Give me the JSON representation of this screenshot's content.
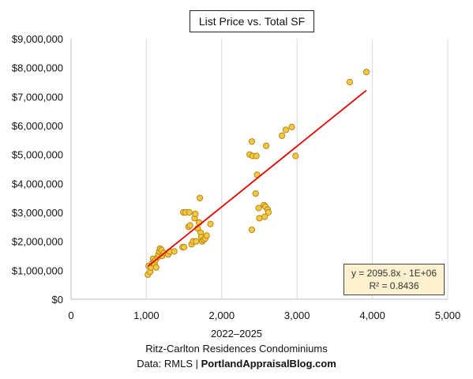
{
  "chart_data": {
    "type": "scatter",
    "title": "List Price vs. Total SF",
    "xlabel": "",
    "ylabel": "",
    "xlim": [
      0,
      5000
    ],
    "ylim": [
      0,
      9000000
    ],
    "x_ticks": [
      0,
      1000,
      2000,
      3000,
      4000,
      5000
    ],
    "x_tick_labels": [
      "0",
      "1,000",
      "2,000",
      "3,000",
      "4,000",
      "5,000"
    ],
    "y_ticks": [
      0,
      1000000,
      2000000,
      3000000,
      4000000,
      5000000,
      6000000,
      7000000,
      8000000,
      9000000
    ],
    "y_tick_labels": [
      "$0",
      "$1,000,000",
      "$2,000,000",
      "$3,000,000",
      "$4,000,000",
      "$5,000,000",
      "$6,000,000",
      "$7,000,000",
      "$8,000,000",
      "$9,000,000"
    ],
    "grid": "vertical",
    "legend": "none",
    "point_color": "#f5c84a",
    "point_edge_color": "#b8860b",
    "trendline_color": "#e30000",
    "points": [
      [
        1020,
        850000
      ],
      [
        1050,
        950000
      ],
      [
        1030,
        1150000
      ],
      [
        1060,
        1100000
      ],
      [
        1080,
        1250000
      ],
      [
        1090,
        1400000
      ],
      [
        1100,
        1300000
      ],
      [
        1110,
        1200000
      ],
      [
        1120,
        1350000
      ],
      [
        1130,
        1100000
      ],
      [
        1150,
        1450000
      ],
      [
        1160,
        1550000
      ],
      [
        1170,
        1650000
      ],
      [
        1180,
        1750000
      ],
      [
        1200,
        1700000
      ],
      [
        1210,
        1500000
      ],
      [
        1230,
        1600000
      ],
      [
        1290,
        1550000
      ],
      [
        1310,
        1650000
      ],
      [
        1370,
        1650000
      ],
      [
        1480,
        1800000
      ],
      [
        1500,
        1800000
      ],
      [
        1490,
        3000000
      ],
      [
        1520,
        3000000
      ],
      [
        1560,
        2500000
      ],
      [
        1570,
        3000000
      ],
      [
        1580,
        2550000
      ],
      [
        1600,
        1900000
      ],
      [
        1620,
        2000000
      ],
      [
        1640,
        2800000
      ],
      [
        1650,
        2950000
      ],
      [
        1660,
        2000000
      ],
      [
        1680,
        2450000
      ],
      [
        1700,
        2650000
      ],
      [
        1710,
        3500000
      ],
      [
        1720,
        2300000
      ],
      [
        1730,
        2150000
      ],
      [
        1740,
        2000000
      ],
      [
        1760,
        2050000
      ],
      [
        1780,
        2100000
      ],
      [
        1800,
        2200000
      ],
      [
        1850,
        2600000
      ],
      [
        2370,
        5000000
      ],
      [
        2400,
        5450000
      ],
      [
        2400,
        2400000
      ],
      [
        2410,
        4950000
      ],
      [
        2450,
        3650000
      ],
      [
        2460,
        4950000
      ],
      [
        2470,
        4300000
      ],
      [
        2490,
        3150000
      ],
      [
        2500,
        2800000
      ],
      [
        2560,
        3250000
      ],
      [
        2570,
        2850000
      ],
      [
        2580,
        3200000
      ],
      [
        2590,
        5300000
      ],
      [
        2610,
        3100000
      ],
      [
        2620,
        3000000
      ],
      [
        2800,
        5650000
      ],
      [
        2850,
        5850000
      ],
      [
        2930,
        5950000
      ],
      [
        2980,
        4950000
      ],
      [
        3700,
        7500000
      ],
      [
        3920,
        7850000
      ]
    ],
    "trendline": {
      "slope": 2095.8,
      "intercept": -1000000,
      "x_range": [
        1020,
        3920
      ]
    },
    "equation_text": "y = 2095.8x - 1E+06",
    "r2_text": "R² = 0.8436",
    "caption_line1": "2022–2025",
    "caption_line2": "Ritz-Carlton Residences Condominiums",
    "caption_source_prefix": "Data: RMLS | ",
    "caption_source_bold": "PortlandAppraisalBlog.com"
  }
}
